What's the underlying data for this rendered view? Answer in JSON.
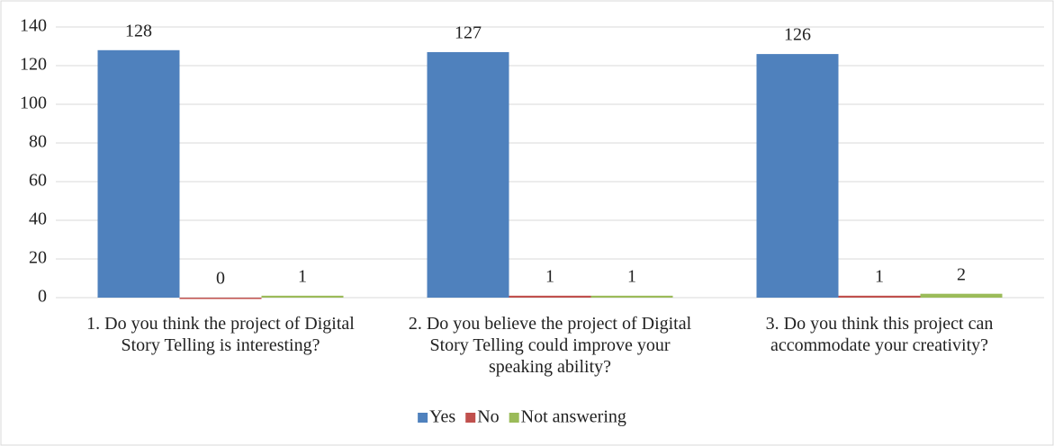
{
  "chart_data": {
    "type": "bar",
    "categories": [
      "1. Do you think the project of Digital Story Telling is interesting?",
      "2. Do you believe the project of Digital Story Telling could improve your speaking ability?",
      "3. Do you think this project can accommodate your creativity?"
    ],
    "series": [
      {
        "name": "Yes",
        "color": "#4f81bd",
        "values": [
          128,
          127,
          126
        ]
      },
      {
        "name": "No",
        "color": "#c0504d",
        "values": [
          0,
          1,
          1
        ]
      },
      {
        "name": "Not answering",
        "color": "#9bbb59",
        "values": [
          1,
          1,
          2
        ]
      }
    ],
    "ylim": [
      0,
      140
    ],
    "yticks": [
      0,
      20,
      40,
      60,
      80,
      100,
      120,
      140
    ],
    "grid": true,
    "legend": "bottom"
  }
}
